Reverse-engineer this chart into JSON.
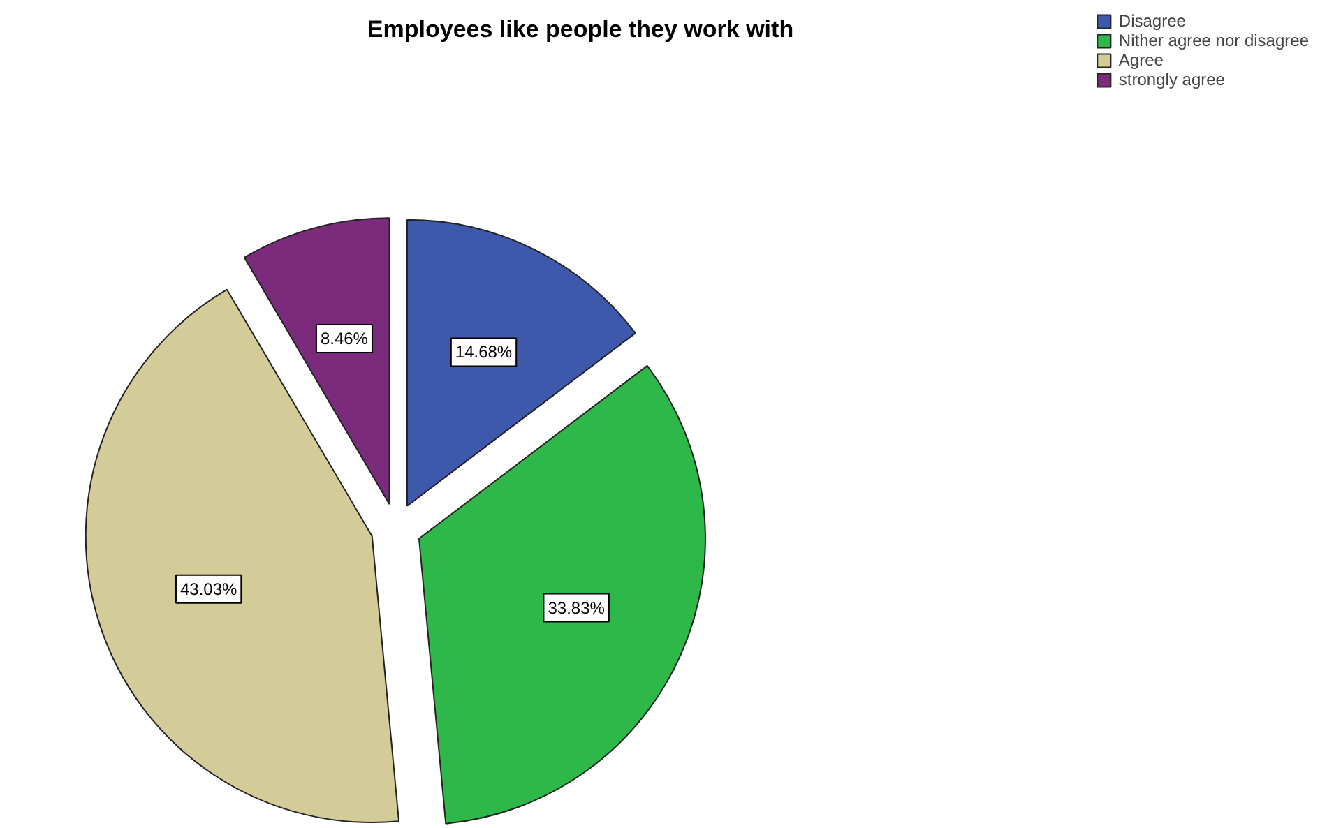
{
  "chart_data": {
    "type": "pie",
    "title": "Employees like people they work with",
    "categories": [
      "Disagree",
      "Nither agree nor disagree",
      "Agree",
      "strongly agree"
    ],
    "values": [
      14.68,
      33.83,
      43.03,
      8.46
    ],
    "colors": [
      "#3e58ac",
      "#2fb84a",
      "#d4cc98",
      "#7b2a7c"
    ],
    "value_labels": [
      "14.68%",
      "33.83%",
      "43.03%",
      "8.46%"
    ],
    "legend": "top right"
  }
}
